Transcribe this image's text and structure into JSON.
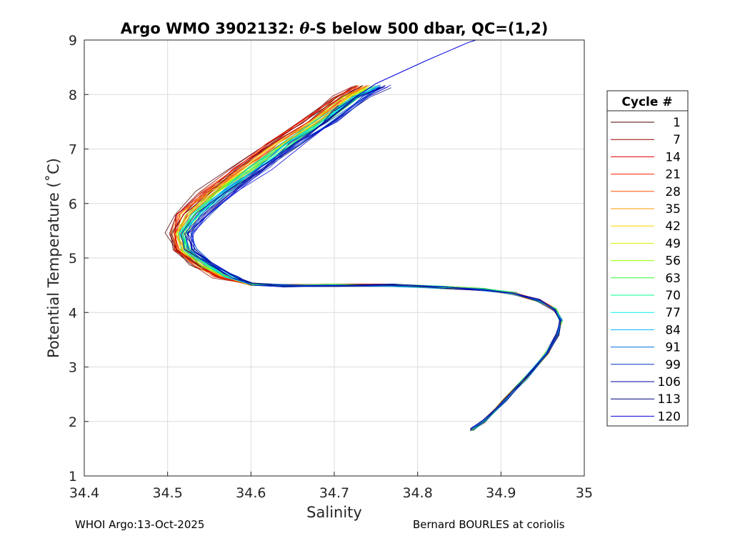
{
  "chart_data": {
    "type": "line",
    "title_prefix": "Argo WMO 3902132: ",
    "title_symbol": "θ",
    "title_suffix": "-S below 500 dbar,  QC=(1,2)",
    "xlabel": "Salinity",
    "ylabel": "Potential Temperature (˚C)",
    "xlim": [
      34.4,
      35.0
    ],
    "ylim": [
      1,
      9
    ],
    "xticks": [
      34.4,
      34.5,
      34.6,
      34.7,
      34.8,
      34.9,
      35.0
    ],
    "xtick_labels": [
      "34.4",
      "34.5",
      "34.6",
      "34.7",
      "34.8",
      "34.9",
      "35"
    ],
    "yticks": [
      1,
      2,
      3,
      4,
      5,
      6,
      7,
      8,
      9
    ],
    "ytick_labels": [
      "1",
      "2",
      "3",
      "4",
      "5",
      "6",
      "7",
      "8",
      "9"
    ],
    "grid": true,
    "legend_title": "Cycle #",
    "legend_position": "right-outside",
    "legend": [
      {
        "label": "1",
        "color": "#4d0000"
      },
      {
        "label": "7",
        "color": "#990000"
      },
      {
        "label": "14",
        "color": "#e00000"
      },
      {
        "label": "21",
        "color": "#ff2000"
      },
      {
        "label": "28",
        "color": "#ff5500"
      },
      {
        "label": "35",
        "color": "#ff9900"
      },
      {
        "label": "42",
        "color": "#ffd200"
      },
      {
        "label": "49",
        "color": "#d8f000"
      },
      {
        "label": "56",
        "color": "#90ff00"
      },
      {
        "label": "63",
        "color": "#30ff30"
      },
      {
        "label": "70",
        "color": "#00ff90"
      },
      {
        "label": "77",
        "color": "#00f0f0"
      },
      {
        "label": "84",
        "color": "#00b0ff"
      },
      {
        "label": "91",
        "color": "#0070e0"
      },
      {
        "label": "99",
        "color": "#0030c0"
      },
      {
        "label": "106",
        "color": "#0000a0"
      },
      {
        "label": "113",
        "color": "#00007a"
      },
      {
        "label": "120",
        "color": "#0000d8"
      }
    ],
    "profile_path": [
      [
        34.865,
        1.85
      ],
      [
        34.88,
        2.0
      ],
      [
        34.905,
        2.4
      ],
      [
        34.93,
        2.8
      ],
      [
        34.955,
        3.25
      ],
      [
        34.968,
        3.6
      ],
      [
        34.972,
        3.85
      ],
      [
        34.965,
        4.05
      ],
      [
        34.945,
        4.22
      ],
      [
        34.915,
        4.35
      ],
      [
        34.88,
        4.42
      ],
      [
        34.83,
        4.46
      ],
      [
        34.77,
        4.5
      ],
      [
        34.7,
        4.5
      ],
      [
        34.64,
        4.49
      ],
      [
        34.6,
        4.52
      ],
      [
        34.57,
        4.65
      ],
      [
        34.545,
        4.85
      ],
      [
        34.52,
        5.15
      ],
      [
        34.515,
        5.45
      ],
      [
        34.53,
        5.8
      ],
      [
        34.56,
        6.2
      ],
      [
        34.6,
        6.65
      ],
      [
        34.64,
        7.1
      ],
      [
        34.68,
        7.5
      ],
      [
        34.72,
        7.95
      ],
      [
        34.745,
        8.15
      ]
    ],
    "deep_tail": [
      [
        34.7,
        7.7
      ],
      [
        34.75,
        8.2
      ],
      [
        34.81,
        8.62
      ],
      [
        34.86,
        8.95
      ],
      [
        34.87,
        9.0
      ]
    ],
    "side_tail": [
      [
        34.665,
        7.2
      ],
      [
        34.685,
        7.45
      ],
      [
        34.698,
        7.7
      ],
      [
        34.705,
        7.8
      ]
    ]
  },
  "footer": {
    "left": "WHOI Argo:13-Oct-2025",
    "right": "Bernard BOURLES at coriolis"
  }
}
